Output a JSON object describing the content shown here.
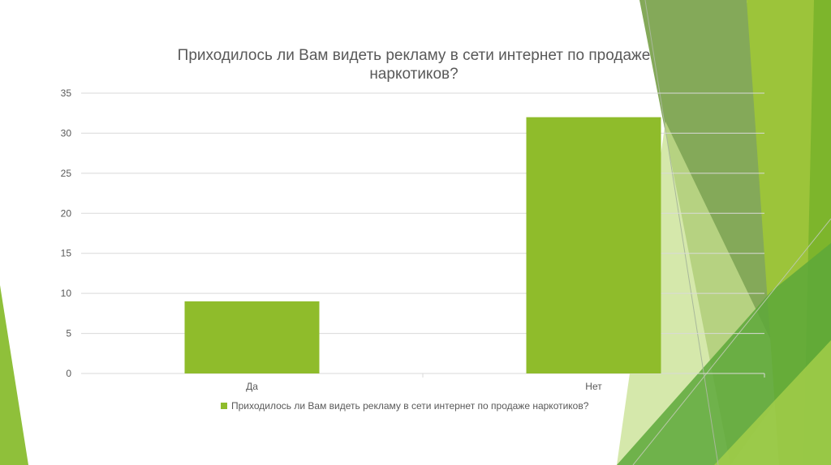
{
  "chart_data": {
    "type": "bar",
    "title_lines": [
      "Приходилось ли Вам видеть рекламу в сети интернет по продаже",
      "наркотиков?"
    ],
    "categories": [
      "Да",
      "Нет"
    ],
    "series": [
      {
        "name": "Приходилось ли Вам видеть рекламу в сети интернет по продаже наркотиков?",
        "values": [
          9,
          32
        ],
        "color": "#8fbc2b"
      }
    ],
    "ylim": [
      0,
      35
    ],
    "yticks": [
      0,
      5,
      10,
      15,
      20,
      25,
      30,
      35
    ],
    "grid": true,
    "legend_position": "bottom"
  },
  "colors": {
    "bar": "#8fbc2b",
    "grid": "#d9d9d9",
    "text": "#595959"
  }
}
